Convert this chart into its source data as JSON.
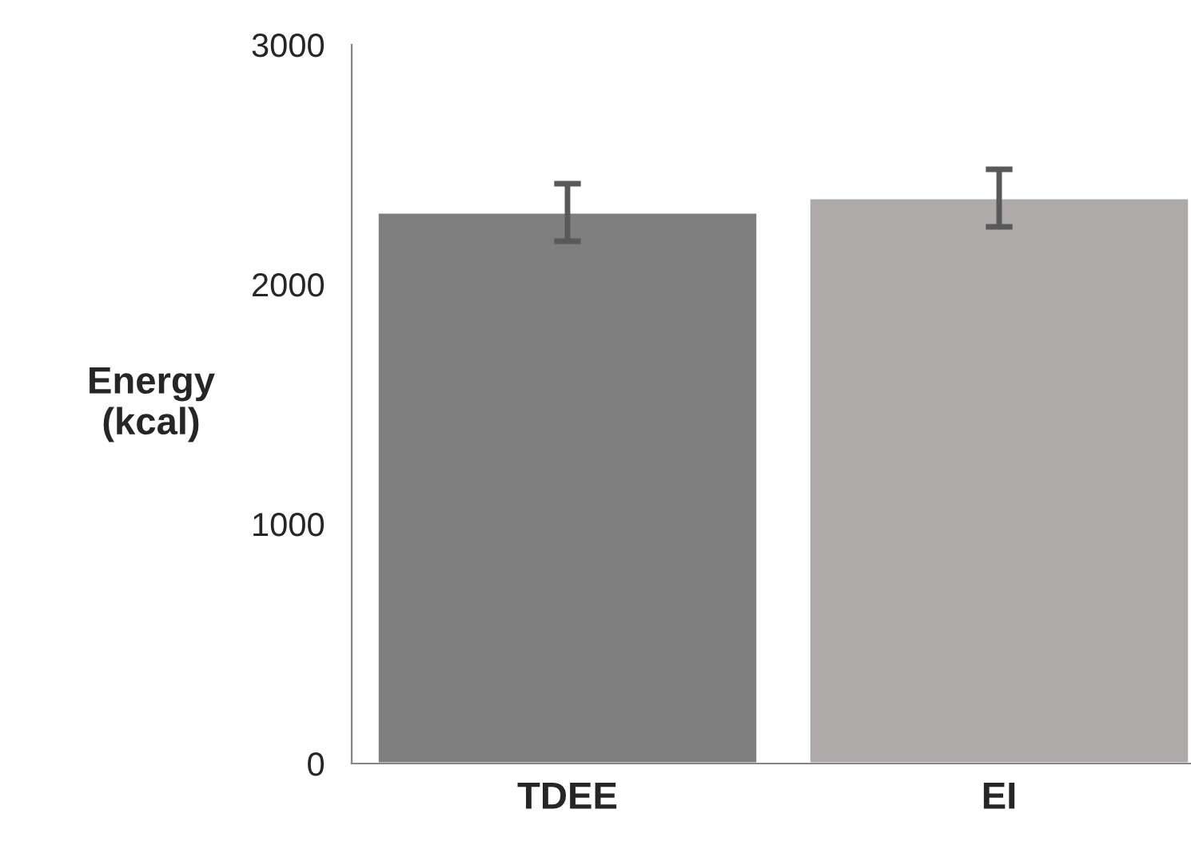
{
  "chart_data": {
    "type": "bar",
    "ylabel": "Energy\n(kcal)",
    "categories": [
      "TDEE",
      "EI"
    ],
    "values": [
      2300,
      2360
    ],
    "colors": [
      "#7f7f7f",
      "#aeaaaa"
    ],
    "errors": [
      120,
      120
    ],
    "ylim": [
      0,
      3000
    ],
    "yticks": [
      0,
      1000,
      2000,
      3000
    ],
    "grid": false,
    "legend": false
  }
}
